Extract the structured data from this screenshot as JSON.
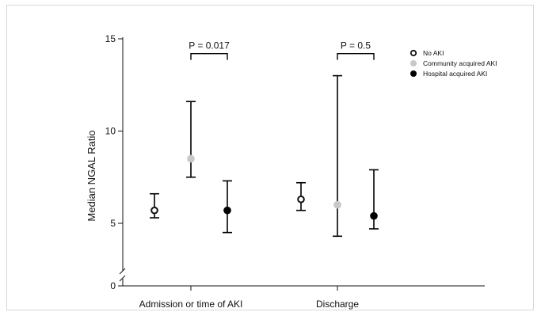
{
  "chart_data": {
    "type": "scatter",
    "title": "",
    "xlabel": "",
    "ylabel": "Median NGAL Ratio",
    "categories": [
      "Admission or time of AKI",
      "Discharge"
    ],
    "y_ticks": [
      "0",
      "5",
      "10",
      "15"
    ],
    "ylim": [
      0,
      15.5
    ],
    "axis_break": true,
    "grid": false,
    "legend_position": "top-right",
    "series": [
      {
        "name": "No AKI",
        "color": "#111111",
        "marker": "open-circle",
        "points": [
          {
            "x": "Admission or time of AKI",
            "y": 5.7,
            "low": 5.3,
            "high": 6.6
          },
          {
            "x": "Discharge",
            "y": 6.3,
            "low": 5.7,
            "high": 7.2
          }
        ]
      },
      {
        "name": "Community acquired AKI",
        "color": "#c8c8c8",
        "marker": "filled-circle",
        "points": [
          {
            "x": "Admission or time of AKI",
            "y": 8.5,
            "low": 7.5,
            "high": 11.6
          },
          {
            "x": "Discharge",
            "y": 6.0,
            "low": 4.3,
            "high": 13.0
          }
        ]
      },
      {
        "name": "Hospital acquired AKI",
        "color": "#000000",
        "marker": "filled-circle",
        "points": [
          {
            "x": "Admission or time of AKI",
            "y": 5.7,
            "low": 4.5,
            "high": 7.3
          },
          {
            "x": "Discharge",
            "y": 5.4,
            "low": 4.7,
            "high": 7.9
          }
        ]
      }
    ],
    "annotations": [
      {
        "text": "P = 0.017",
        "category": "Admission or time of AKI",
        "from_series": 1,
        "to_series": 2
      },
      {
        "text": "P = 0.5",
        "category": "Discharge",
        "from_series": 1,
        "to_series": 2
      }
    ]
  }
}
